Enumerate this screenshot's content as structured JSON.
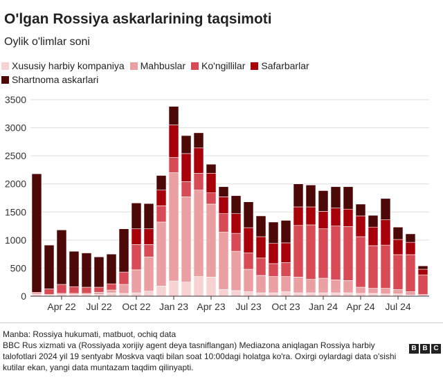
{
  "header": {
    "title": "O'lgan Rossiya askarlarining taqsimoti",
    "subtitle": "Oylik o'limlar soni"
  },
  "legend": [
    {
      "label": "Xususiy harbiy kompaniya",
      "color": "#f7d2d2"
    },
    {
      "label": "Mahbuslar",
      "color": "#ea9fa2"
    },
    {
      "label": "Ko'ngillilar",
      "color": "#d64b55"
    },
    {
      "label": "Safarbarlar",
      "color": "#a8000b"
    },
    {
      "label": "Shartnoma askarlari",
      "color": "#4d0808"
    }
  ],
  "chart_data": {
    "type": "bar",
    "stacked": true,
    "ylim": [
      0,
      3500
    ],
    "yticks": [
      0,
      500,
      1000,
      1500,
      2000,
      2500,
      3000,
      3500
    ],
    "grid": true,
    "categories": [
      "Feb 22",
      "Mar 22",
      "Apr 22",
      "May 22",
      "Jun 22",
      "Jul 22",
      "Aug 22",
      "Sep 22",
      "Oct 22",
      "Nov 22",
      "Dec 22",
      "Jan 23",
      "Feb 23",
      "Mar 23",
      "Apr 23",
      "May 23",
      "Jun 23",
      "Jul 23",
      "Aug 23",
      "Sep 23",
      "Oct 23",
      "Nov 23",
      "Dec 23",
      "Jan 24",
      "Feb 24",
      "Mar 24",
      "Apr 24",
      "May 24",
      "Jun 24",
      "Jul 24",
      "Aug 24",
      "Sep 24"
    ],
    "xtick_labels": [
      {
        "index": 2,
        "label": "Apr 22"
      },
      {
        "index": 5,
        "label": "Jul 22"
      },
      {
        "index": 8,
        "label": "Oct 22"
      },
      {
        "index": 11,
        "label": "Jan 23"
      },
      {
        "index": 14,
        "label": "Apr 23"
      },
      {
        "index": 17,
        "label": "Jul 23"
      },
      {
        "index": 20,
        "label": "Oct 23"
      },
      {
        "index": 23,
        "label": "Jan 24"
      },
      {
        "index": 26,
        "label": "Apr 24"
      },
      {
        "index": 29,
        "label": "Jul 24"
      }
    ],
    "series": [
      {
        "name": "Xususiy harbiy kompaniya",
        "values": [
          30,
          20,
          30,
          30,
          30,
          30,
          60,
          50,
          60,
          90,
          180,
          270,
          250,
          350,
          340,
          120,
          100,
          80,
          60,
          60,
          80,
          60,
          60,
          60,
          60,
          60,
          50,
          50,
          40,
          40,
          20,
          10
        ]
      },
      {
        "name": "Mahbuslar",
        "values": [
          20,
          10,
          20,
          20,
          20,
          40,
          50,
          160,
          410,
          610,
          1140,
          1930,
          1520,
          1540,
          1300,
          1020,
          700,
          400,
          310,
          290,
          270,
          280,
          240,
          260,
          230,
          220,
          110,
          90,
          100,
          80,
          60,
          20
        ]
      },
      {
        "name": "Ko'ngillilar",
        "values": [
          20,
          100,
          160,
          120,
          110,
          90,
          110,
          220,
          450,
          220,
          290,
          270,
          270,
          300,
          200,
          330,
          320,
          290,
          310,
          230,
          250,
          920,
          970,
          880,
          960,
          960,
          900,
          760,
          770,
          620,
          660,
          350
        ]
      },
      {
        "name": "Safarbarlar",
        "values": [
          0,
          0,
          0,
          0,
          0,
          0,
          0,
          0,
          280,
          280,
          280,
          580,
          500,
          450,
          350,
          300,
          350,
          450,
          380,
          360,
          350,
          330,
          320,
          310,
          320,
          310,
          370,
          330,
          450,
          270,
          220,
          100
        ]
      },
      {
        "name": "Shartnoma askarlari",
        "values": [
          2110,
          780,
          970,
          630,
          610,
          540,
          530,
          770,
          460,
          450,
          260,
          330,
          320,
          270,
          160,
          180,
          320,
          460,
          370,
          380,
          400,
          410,
          390,
          370,
          380,
          400,
          210,
          210,
          380,
          220,
          150,
          60
        ]
      }
    ]
  },
  "footer": {
    "source_line1": "Manba: Rossiya hukumati, matbuot, ochiq data",
    "source_line2": "BBC Rus xizmati va (Rossiyada xorijiy agent deya tasniflangan) Mediazona aniqlagan Rossiya harbiy talofotlari 2024 yil 19 sentyabr Moskva vaqti bilan soat 10:00dagi holatga ko'ra. Oxirgi oylardagi data o'sishi kutilar ekan, yangi data muntazam taqdim qilinyapti.",
    "logo_letters": [
      "B",
      "B",
      "C"
    ]
  }
}
